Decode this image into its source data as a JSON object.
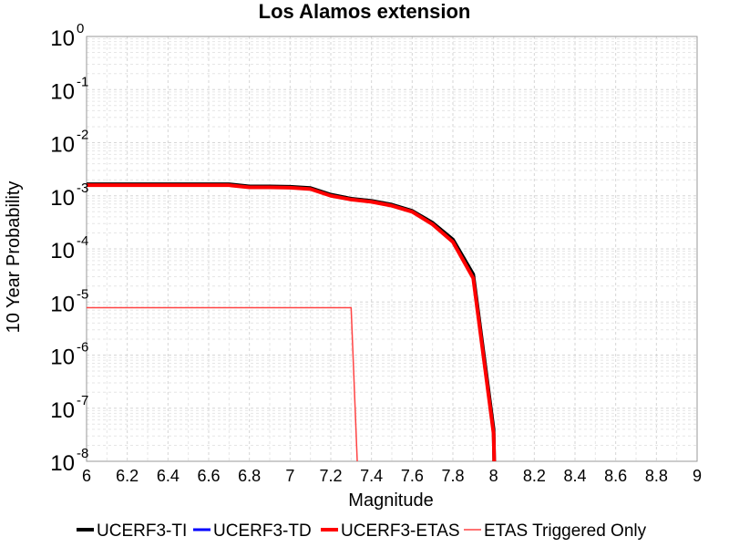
{
  "chart_data": {
    "type": "line",
    "title": "Los Alamos extension",
    "xlabel": "Magnitude",
    "ylabel": "10 Year Probability",
    "xlim": [
      6,
      9
    ],
    "ylim": [
      1e-08,
      1
    ],
    "yscale": "log",
    "grid": true,
    "legend_position": "bottom",
    "x_ticks": [
      "6",
      "6.2",
      "6.4",
      "6.6",
      "6.8",
      "7",
      "7.2",
      "7.4",
      "7.6",
      "7.8",
      "8",
      "8.2",
      "8.4",
      "8.6",
      "8.8",
      "9"
    ],
    "y_ticks": [
      {
        "base": "10",
        "exp": "0",
        "value": 1
      },
      {
        "base": "10",
        "exp": "-1",
        "value": 0.1
      },
      {
        "base": "10",
        "exp": "-2",
        "value": 0.01
      },
      {
        "base": "10",
        "exp": "-3",
        "value": 0.001
      },
      {
        "base": "10",
        "exp": "-4",
        "value": 0.0001
      },
      {
        "base": "10",
        "exp": "-5",
        "value": 1e-05
      },
      {
        "base": "10",
        "exp": "-6",
        "value": 1e-06
      },
      {
        "base": "10",
        "exp": "-7",
        "value": 1e-07
      },
      {
        "base": "10",
        "exp": "-8",
        "value": 1e-08
      }
    ],
    "series": [
      {
        "name": "UCERF3-TI",
        "color": "#000000",
        "width": 4,
        "points": [
          [
            6.0,
            0.00165
          ],
          [
            6.1,
            0.00165
          ],
          [
            6.2,
            0.00165
          ],
          [
            6.3,
            0.00165
          ],
          [
            6.4,
            0.00165
          ],
          [
            6.5,
            0.00165
          ],
          [
            6.6,
            0.00165
          ],
          [
            6.7,
            0.00165
          ],
          [
            6.8,
            0.0015
          ],
          [
            6.9,
            0.0015
          ],
          [
            7.0,
            0.00148
          ],
          [
            7.1,
            0.0014
          ],
          [
            7.2,
            0.00105
          ],
          [
            7.3,
            0.00088
          ],
          [
            7.4,
            0.0008
          ],
          [
            7.5,
            0.00068
          ],
          [
            7.6,
            0.00052
          ],
          [
            7.7,
            0.00031
          ],
          [
            7.8,
            0.00015
          ],
          [
            7.9,
            3.3e-05
          ],
          [
            8.0,
            4e-08
          ],
          [
            8.003,
            9e-09
          ]
        ]
      },
      {
        "name": "UCERF3-TD",
        "color": "#0000ff",
        "width": 3,
        "points": [
          [
            6.0,
            0.00158
          ],
          [
            6.1,
            0.00158
          ],
          [
            6.2,
            0.00158
          ],
          [
            6.3,
            0.00158
          ],
          [
            6.4,
            0.00158
          ],
          [
            6.5,
            0.00158
          ],
          [
            6.6,
            0.00158
          ],
          [
            6.7,
            0.00158
          ],
          [
            6.8,
            0.00144
          ],
          [
            6.9,
            0.00144
          ],
          [
            7.0,
            0.00142
          ],
          [
            7.1,
            0.00134
          ],
          [
            7.2,
            0.001
          ],
          [
            7.3,
            0.00085
          ],
          [
            7.4,
            0.00077
          ],
          [
            7.5,
            0.00065
          ],
          [
            7.6,
            0.0005
          ],
          [
            7.7,
            0.00029
          ],
          [
            7.8,
            0.000135
          ],
          [
            7.9,
            2.8e-05
          ],
          [
            8.0,
            3.3e-08
          ],
          [
            8.003,
            9e-09
          ]
        ]
      },
      {
        "name": "UCERF3-ETAS",
        "color": "#ff0000",
        "width": 4,
        "points": [
          [
            6.0,
            0.00158
          ],
          [
            6.1,
            0.00158
          ],
          [
            6.2,
            0.00158
          ],
          [
            6.3,
            0.00158
          ],
          [
            6.4,
            0.00158
          ],
          [
            6.5,
            0.00158
          ],
          [
            6.6,
            0.00158
          ],
          [
            6.7,
            0.00158
          ],
          [
            6.8,
            0.00144
          ],
          [
            6.9,
            0.00144
          ],
          [
            7.0,
            0.00142
          ],
          [
            7.1,
            0.00134
          ],
          [
            7.2,
            0.001
          ],
          [
            7.3,
            0.00085
          ],
          [
            7.4,
            0.00077
          ],
          [
            7.5,
            0.00065
          ],
          [
            7.6,
            0.0005
          ],
          [
            7.7,
            0.00029
          ],
          [
            7.8,
            0.000135
          ],
          [
            7.9,
            2.8e-05
          ],
          [
            8.0,
            3.3e-08
          ],
          [
            8.003,
            9e-09
          ]
        ]
      },
      {
        "name": "ETAS Triggered Only",
        "color": "#ff4444",
        "width": 1.5,
        "points": [
          [
            6.0,
            7.8e-06
          ],
          [
            7.3,
            7.8e-06
          ],
          [
            7.33,
            9e-09
          ]
        ]
      }
    ]
  }
}
